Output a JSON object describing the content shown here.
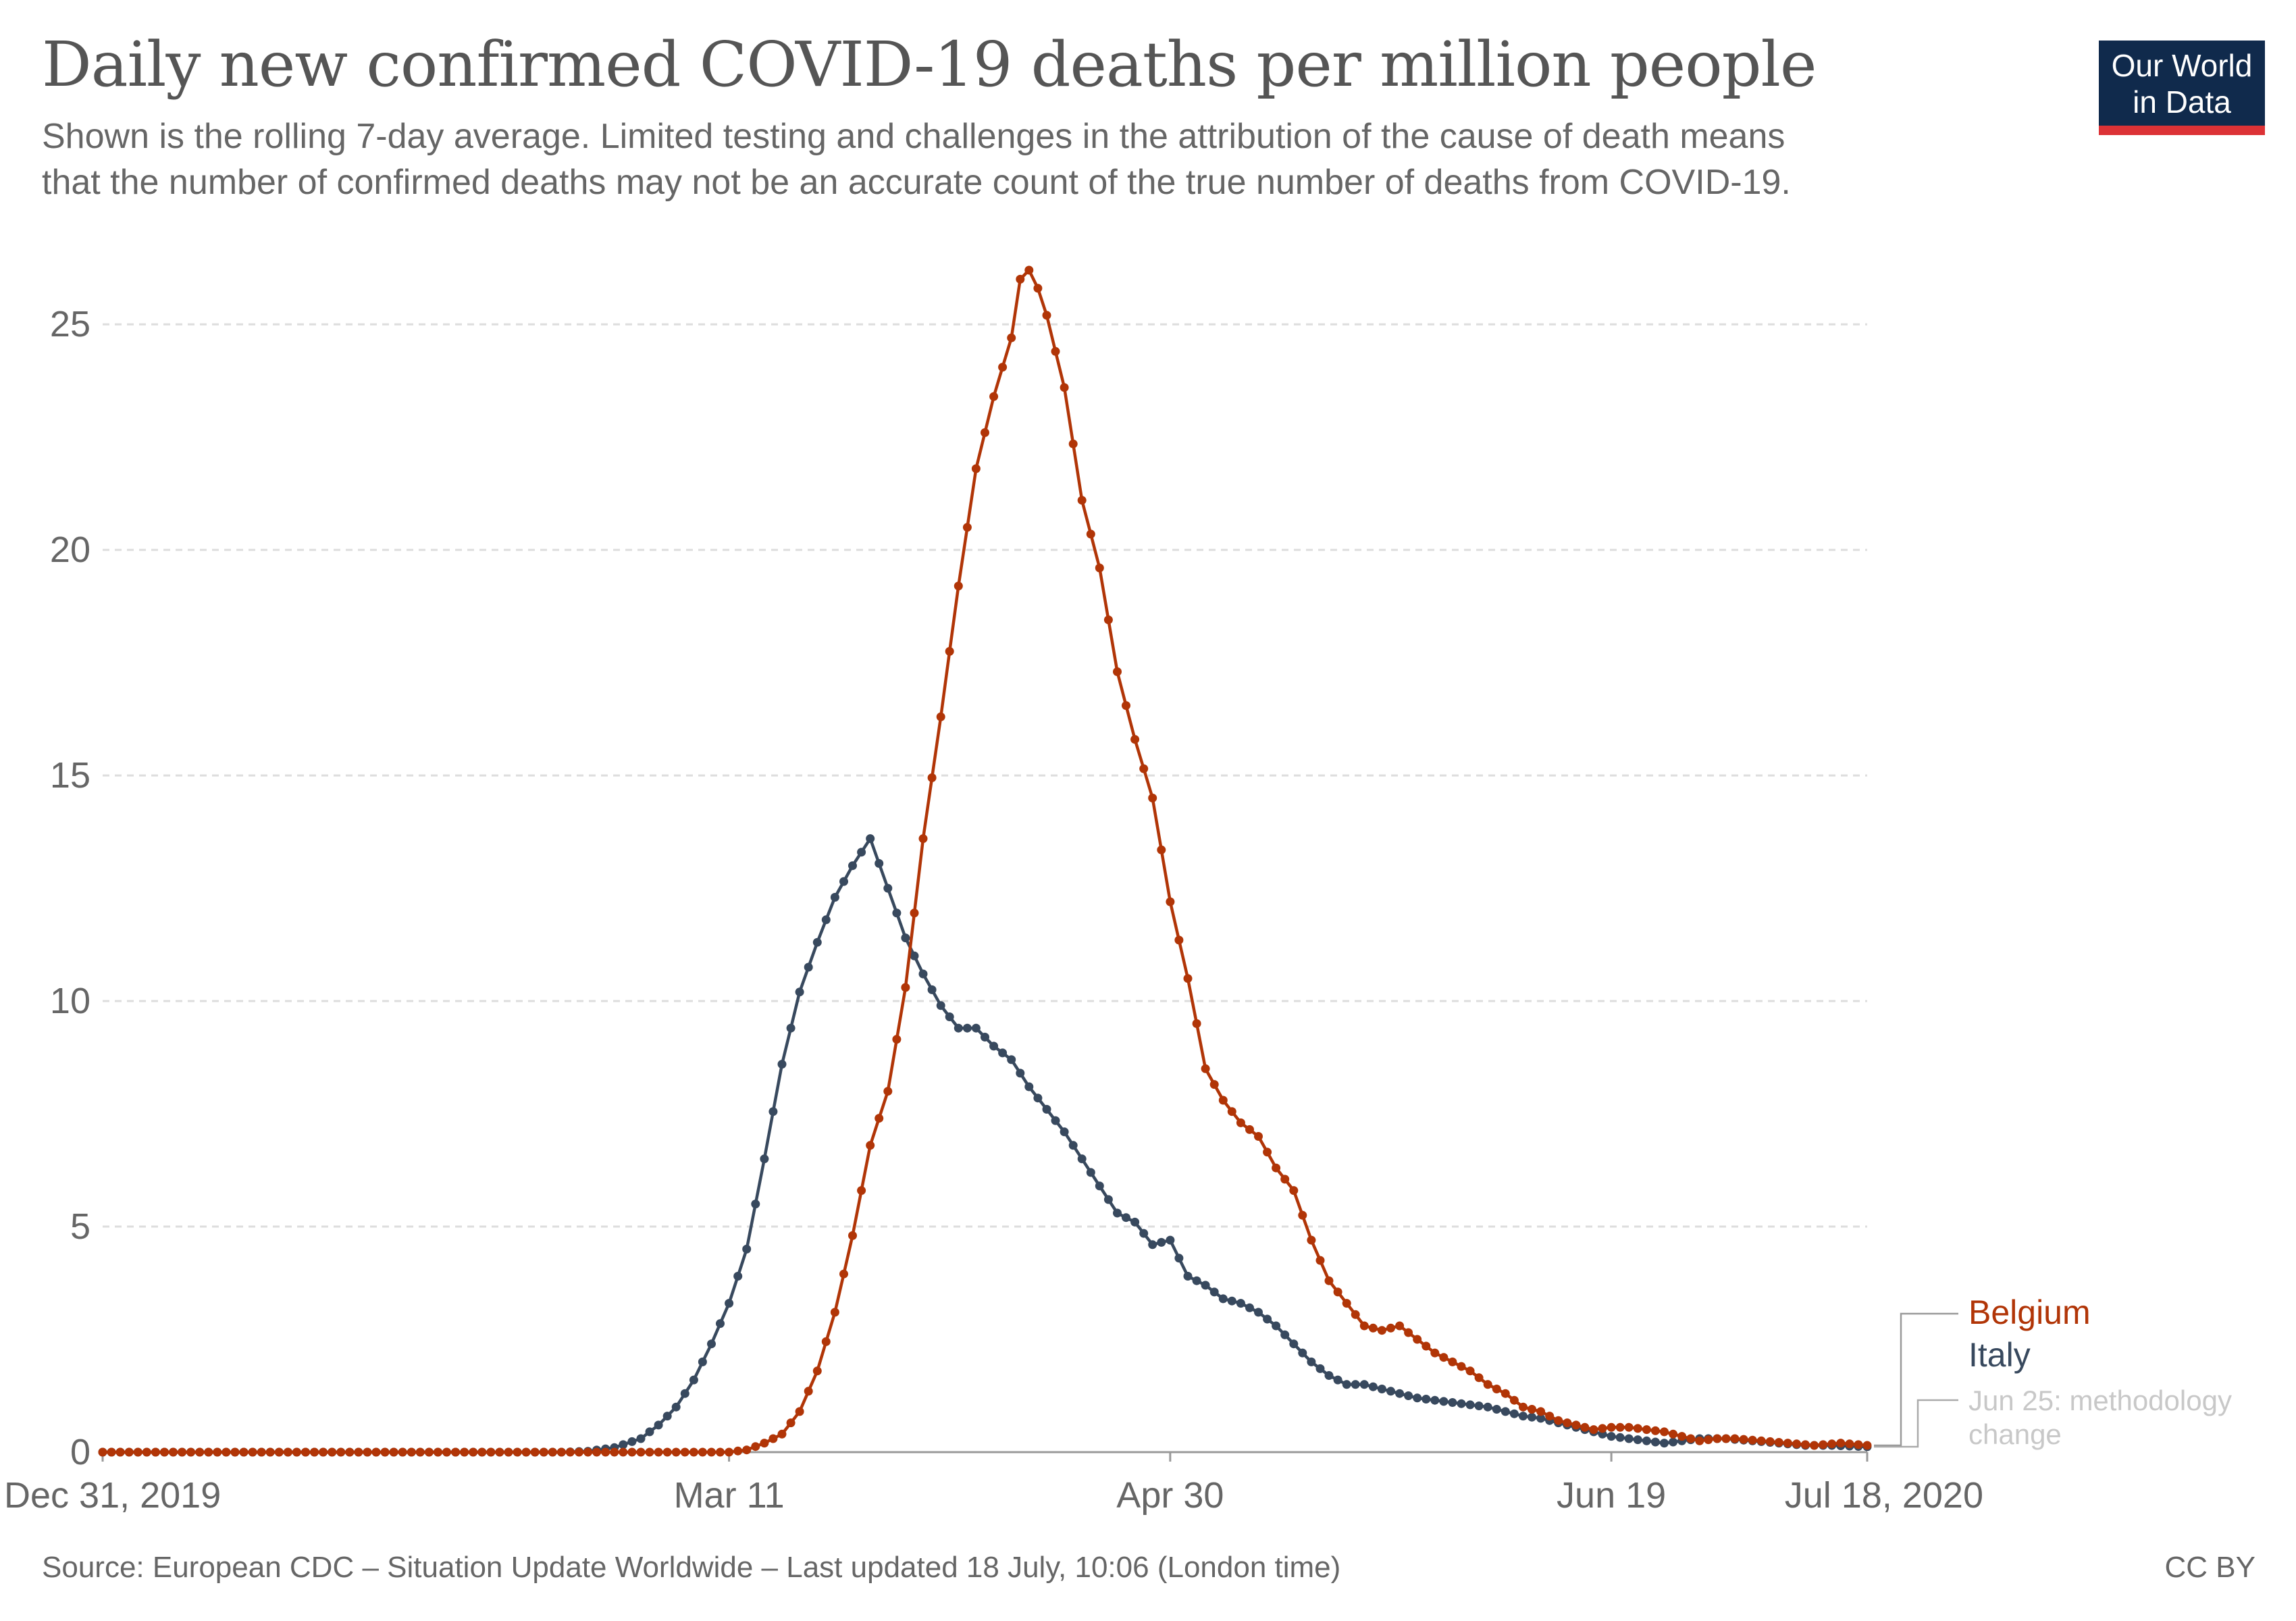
{
  "title": "Daily new confirmed COVID-19 deaths per million people",
  "subtitle": [
    "Shown is the rolling 7-day average. Limited testing and challenges in the attribution of the cause of death means",
    "that the number of confirmed deaths may not be an accurate count of the true number of deaths from COVID-19."
  ],
  "logo": {
    "text": "Our World\nin Data",
    "bg_color": "#102a4c",
    "accent_color": "#dc3236"
  },
  "footer": {
    "source": "Source: European CDC – Situation Update Worldwide – Last updated 18 July, 10:06 (London time)",
    "license": "CC BY"
  },
  "annotation": {
    "date_text": "Jun 25",
    "rest": ": methodology",
    "line2": "change"
  },
  "chart_data": {
    "type": "line",
    "x_start": "2019-12-31",
    "x_end": "2020-07-18",
    "x_tick_labels": [
      "Dec 31, 2019",
      "Mar 11",
      "Apr 30",
      "Jun 19",
      "Jul 18, 2020"
    ],
    "x_tick_dates": [
      "2019-12-31",
      "2020-03-11",
      "2020-04-30",
      "2020-06-19",
      "2020-07-18"
    ],
    "y_ticks": [
      0,
      5,
      10,
      15,
      20,
      25
    ],
    "ylim": [
      0,
      26.5
    ],
    "grid": true,
    "legend": "right",
    "series": [
      {
        "name": "Belgium",
        "color": "#b13507",
        "markers": true,
        "points": [
          [
            "2019-12-31",
            0
          ],
          [
            "2020-03-11",
            0
          ],
          [
            "2020-03-13",
            0.05
          ],
          [
            "2020-03-15",
            0.2
          ],
          [
            "2020-03-17",
            0.4
          ],
          [
            "2020-03-19",
            0.9
          ],
          [
            "2020-03-21",
            1.8
          ],
          [
            "2020-03-23",
            3.1
          ],
          [
            "2020-03-25",
            4.8
          ],
          [
            "2020-03-27",
            6.8
          ],
          [
            "2020-03-29",
            8.0
          ],
          [
            "2020-03-31",
            10.3
          ],
          [
            "2020-04-02",
            13.6
          ],
          [
            "2020-04-04",
            16.3
          ],
          [
            "2020-04-06",
            19.2
          ],
          [
            "2020-04-08",
            21.8
          ],
          [
            "2020-04-10",
            23.4
          ],
          [
            "2020-04-12",
            24.7
          ],
          [
            "2020-04-13",
            26.0
          ],
          [
            "2020-04-14",
            26.2
          ],
          [
            "2020-04-15",
            25.8
          ],
          [
            "2020-04-16",
            25.2
          ],
          [
            "2020-04-18",
            23.6
          ],
          [
            "2020-04-20",
            21.1
          ],
          [
            "2020-04-22",
            19.6
          ],
          [
            "2020-04-24",
            17.3
          ],
          [
            "2020-04-26",
            15.8
          ],
          [
            "2020-04-28",
            14.5
          ],
          [
            "2020-04-30",
            12.2
          ],
          [
            "2020-05-02",
            10.5
          ],
          [
            "2020-05-04",
            8.5
          ],
          [
            "2020-05-06",
            7.8
          ],
          [
            "2020-05-08",
            7.3
          ],
          [
            "2020-05-10",
            7.0
          ],
          [
            "2020-05-12",
            6.3
          ],
          [
            "2020-05-14",
            5.8
          ],
          [
            "2020-05-16",
            4.7
          ],
          [
            "2020-05-18",
            3.8
          ],
          [
            "2020-05-20",
            3.3
          ],
          [
            "2020-05-22",
            2.8
          ],
          [
            "2020-05-24",
            2.7
          ],
          [
            "2020-05-26",
            2.8
          ],
          [
            "2020-05-28",
            2.5
          ],
          [
            "2020-05-30",
            2.2
          ],
          [
            "2020-06-01",
            2.0
          ],
          [
            "2020-06-03",
            1.8
          ],
          [
            "2020-06-05",
            1.5
          ],
          [
            "2020-06-07",
            1.3
          ],
          [
            "2020-06-09",
            1.0
          ],
          [
            "2020-06-11",
            0.9
          ],
          [
            "2020-06-13",
            0.7
          ],
          [
            "2020-06-15",
            0.6
          ],
          [
            "2020-06-17",
            0.5
          ],
          [
            "2020-06-19",
            0.55
          ],
          [
            "2020-06-21",
            0.55
          ],
          [
            "2020-06-23",
            0.5
          ],
          [
            "2020-06-25",
            0.45
          ],
          [
            "2020-06-27",
            0.35
          ],
          [
            "2020-06-29",
            0.25
          ],
          [
            "2020-07-01",
            0.3
          ],
          [
            "2020-07-03",
            0.3
          ],
          [
            "2020-07-06",
            0.25
          ],
          [
            "2020-07-09",
            0.2
          ],
          [
            "2020-07-12",
            0.15
          ],
          [
            "2020-07-15",
            0.2
          ],
          [
            "2020-07-18",
            0.15
          ]
        ]
      },
      {
        "name": "Italy",
        "color": "#38495e",
        "markers": true,
        "points": [
          [
            "2019-12-31",
            0
          ],
          [
            "2020-02-21",
            0
          ],
          [
            "2020-02-24",
            0.02
          ],
          [
            "2020-02-27",
            0.1
          ],
          [
            "2020-03-01",
            0.3
          ],
          [
            "2020-03-03",
            0.6
          ],
          [
            "2020-03-05",
            1.0
          ],
          [
            "2020-03-07",
            1.6
          ],
          [
            "2020-03-09",
            2.4
          ],
          [
            "2020-03-11",
            3.3
          ],
          [
            "2020-03-13",
            4.5
          ],
          [
            "2020-03-15",
            6.5
          ],
          [
            "2020-03-17",
            8.6
          ],
          [
            "2020-03-19",
            10.2
          ],
          [
            "2020-03-21",
            11.3
          ],
          [
            "2020-03-23",
            12.3
          ],
          [
            "2020-03-25",
            13.0
          ],
          [
            "2020-03-27",
            13.6
          ],
          [
            "2020-03-29",
            12.5
          ],
          [
            "2020-03-31",
            11.4
          ],
          [
            "2020-04-02",
            10.6
          ],
          [
            "2020-04-04",
            9.9
          ],
          [
            "2020-04-06",
            9.4
          ],
          [
            "2020-04-08",
            9.4
          ],
          [
            "2020-04-10",
            9.0
          ],
          [
            "2020-04-12",
            8.7
          ],
          [
            "2020-04-14",
            8.1
          ],
          [
            "2020-04-16",
            7.6
          ],
          [
            "2020-04-18",
            7.1
          ],
          [
            "2020-04-20",
            6.5
          ],
          [
            "2020-04-22",
            5.9
          ],
          [
            "2020-04-24",
            5.3
          ],
          [
            "2020-04-26",
            5.1
          ],
          [
            "2020-04-28",
            4.6
          ],
          [
            "2020-04-30",
            4.7
          ],
          [
            "2020-05-02",
            3.9
          ],
          [
            "2020-05-04",
            3.7
          ],
          [
            "2020-05-06",
            3.4
          ],
          [
            "2020-05-08",
            3.3
          ],
          [
            "2020-05-10",
            3.1
          ],
          [
            "2020-05-12",
            2.8
          ],
          [
            "2020-05-14",
            2.4
          ],
          [
            "2020-05-16",
            2.0
          ],
          [
            "2020-05-18",
            1.7
          ],
          [
            "2020-05-20",
            1.5
          ],
          [
            "2020-05-22",
            1.5
          ],
          [
            "2020-05-24",
            1.4
          ],
          [
            "2020-05-26",
            1.3
          ],
          [
            "2020-05-28",
            1.2
          ],
          [
            "2020-05-30",
            1.15
          ],
          [
            "2020-06-01",
            1.1
          ],
          [
            "2020-06-03",
            1.05
          ],
          [
            "2020-06-05",
            1.0
          ],
          [
            "2020-06-07",
            0.9
          ],
          [
            "2020-06-09",
            0.8
          ],
          [
            "2020-06-11",
            0.75
          ],
          [
            "2020-06-13",
            0.65
          ],
          [
            "2020-06-15",
            0.55
          ],
          [
            "2020-06-17",
            0.45
          ],
          [
            "2020-06-19",
            0.35
          ],
          [
            "2020-06-21",
            0.3
          ],
          [
            "2020-06-23",
            0.25
          ],
          [
            "2020-06-25",
            0.2
          ],
          [
            "2020-06-27",
            0.25
          ],
          [
            "2020-06-29",
            0.3
          ],
          [
            "2020-07-02",
            0.3
          ],
          [
            "2020-07-05",
            0.25
          ],
          [
            "2020-07-08",
            0.2
          ],
          [
            "2020-07-11",
            0.15
          ],
          [
            "2020-07-14",
            0.15
          ],
          [
            "2020-07-18",
            0.12
          ]
        ]
      }
    ]
  }
}
